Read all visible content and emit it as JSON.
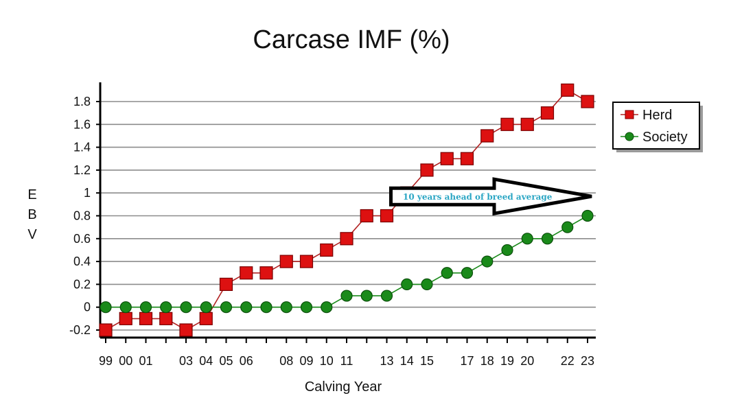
{
  "chart_data": {
    "type": "line",
    "title": "Carcase IMF (%)",
    "xlabel": "Calving Year",
    "ylabel": "EBV",
    "ylim": [
      -0.25,
      1.95
    ],
    "yticks": [
      -0.2,
      0,
      0.2,
      0.4,
      0.6,
      0.8,
      1,
      1.2,
      1.4,
      1.6,
      1.8
    ],
    "ytick_labels": [
      "-0.2",
      "0",
      "0.2",
      "0.4",
      "0.6",
      "0.8",
      "1",
      "1.2",
      "1.4",
      "1.6",
      "1.8"
    ],
    "x": [
      1999,
      2000,
      2001,
      2002,
      2003,
      2004,
      2005,
      2006,
      2007,
      2008,
      2009,
      2010,
      2011,
      2012,
      2013,
      2014,
      2015,
      2016,
      2017,
      2018,
      2019,
      2020,
      2021,
      2022,
      2023
    ],
    "xticks": [
      1999,
      2000,
      2001,
      2003,
      2004,
      2005,
      2006,
      2008,
      2009,
      2010,
      2011,
      2013,
      2014,
      2015,
      2017,
      2018,
      2019,
      2020,
      2022,
      2023
    ],
    "xtick_labels": [
      "99",
      "00",
      "01",
      "03",
      "04",
      "05",
      "06",
      "08",
      "09",
      "10",
      "11",
      "13",
      "14",
      "15",
      "17",
      "18",
      "19",
      "20",
      "22",
      "23"
    ],
    "series": [
      {
        "name": "Herd",
        "marker": "square",
        "color": "#dd1111",
        "line_color": "#b22222",
        "values": [
          -0.2,
          -0.1,
          -0.1,
          -0.1,
          -0.2,
          -0.1,
          0.2,
          0.3,
          0.3,
          0.4,
          0.4,
          0.5,
          0.6,
          0.8,
          0.8,
          1.0,
          1.2,
          1.3,
          1.3,
          1.5,
          1.6,
          1.6,
          1.7,
          1.9,
          1.8
        ]
      },
      {
        "name": "Society",
        "marker": "circle",
        "color": "#1a8a1a",
        "line_color": "#1a8a1a",
        "values": [
          0,
          0,
          0,
          0,
          0,
          0,
          0,
          0,
          0,
          0,
          0,
          0,
          0.1,
          0.1,
          0.1,
          0.2,
          0.2,
          0.3,
          0.3,
          0.4,
          0.5,
          0.6,
          0.6,
          0.7,
          0.8
        ]
      }
    ],
    "annotation": {
      "text": "10 years ahead of breed average",
      "color": "#2ba6c4",
      "from_x": 2013,
      "to_x": 2023,
      "y": 0.97
    },
    "grid": true,
    "legend_position": "right"
  }
}
